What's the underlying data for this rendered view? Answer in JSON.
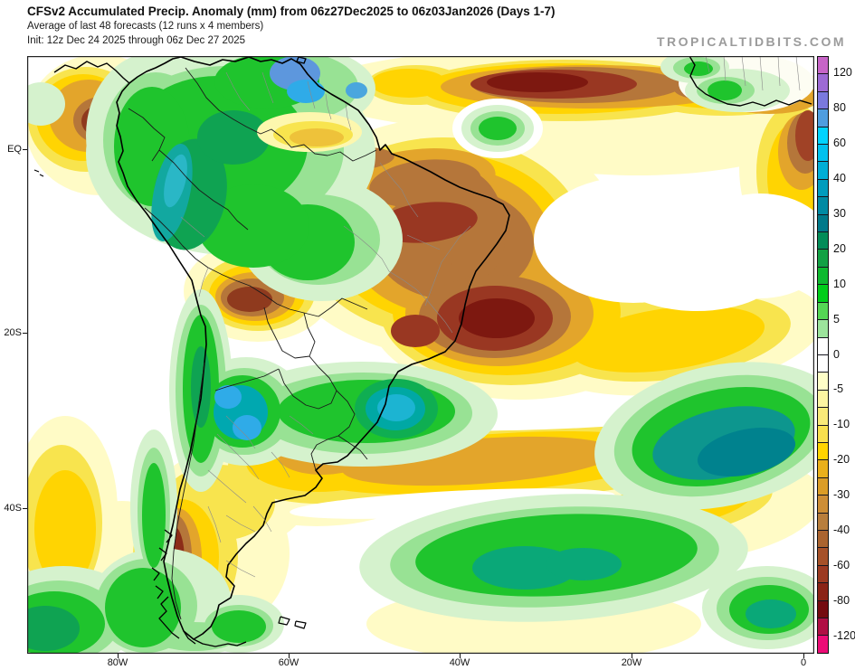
{
  "header": {
    "title": "CFSv2 Accumulated Precip. Anomaly (mm) from 06z27Dec2025 to 06z03Jan2026 (Days 1-7)",
    "subtitle": "Average of last 48 forecasts (12 runs x 4 members)",
    "init_line": "Init: 12z Dec 24 2025 through 06z Dec 27 2025",
    "watermark": "TROPICALTIDBITS.COM"
  },
  "map": {
    "region": "South America",
    "units": "mm",
    "lat_labels": [
      "EQ",
      "20S",
      "40S"
    ],
    "lon_labels": [
      "80W",
      "60W",
      "40W",
      "20W",
      "0"
    ]
  },
  "colorbar": {
    "tick_labels": [
      "120",
      "80",
      "60",
      "40",
      "30",
      "20",
      "10",
      "5",
      "0",
      "-5",
      "-10",
      "-20",
      "-30",
      "-40",
      "-60",
      "-80",
      "-120"
    ],
    "segments": [
      "#c765c7",
      "#9d6ad4",
      "#7a79dd",
      "#4f9ddf",
      "#00d3ff",
      "#00c1ef",
      "#00aed6",
      "#009cbd",
      "#008aa3",
      "#00798a",
      "#028c58",
      "#12a144",
      "#0eb92f",
      "#00cd1a",
      "#55d655",
      "#9ce49c",
      "#ffffff",
      "#ffffff",
      "#ffffc8",
      "#fcf5a2",
      "#f9ea79",
      "#f8e04e",
      "#ffd400",
      "#eab01b",
      "#db9d27",
      "#cd8e36",
      "#b87e3c",
      "#aa6430",
      "#a65129",
      "#9c3a22",
      "#8a2316",
      "#740b10",
      "#b00f44",
      "#ec0c76"
    ]
  }
}
